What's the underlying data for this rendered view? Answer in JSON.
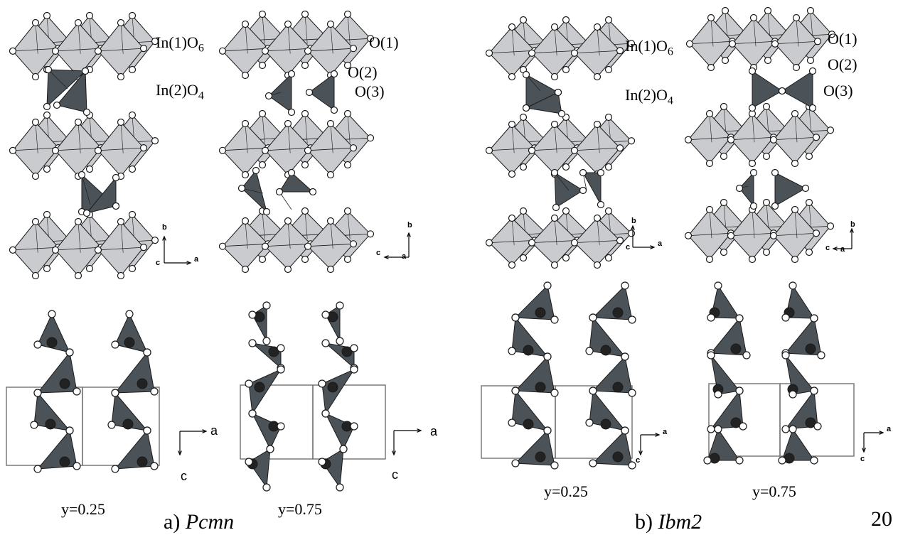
{
  "colors": {
    "octahedron_fill": "#c9cbce",
    "tetrahedron_fill": "#4b5359",
    "edge": "#1a1a1a",
    "oxygen_fill": "#ffffff",
    "indium_fill": "#222222",
    "cell_line": "#7a7a7a"
  },
  "panel_a": {
    "caption_prefix": "a) ",
    "caption_space_group": "Pcmn",
    "polyhedra_labels": [
      "In(1)O",
      "6",
      "In(2)O",
      "4"
    ],
    "oxygen_labels": [
      "O(1)",
      "O(2)",
      "O(3)"
    ],
    "axes_view1": {
      "up": "b",
      "right": "a",
      "origin": "c"
    },
    "axes_view2": {
      "up": "b",
      "left": "c",
      "origin": "a"
    },
    "layers": [
      {
        "label": "y=0.25",
        "axes": {
          "right": "a",
          "down": "c"
        }
      },
      {
        "label": "y=0.75",
        "axes": {
          "right": "a",
          "down": "c"
        }
      }
    ]
  },
  "panel_b": {
    "caption_prefix": "b) ",
    "caption_space_group": "Ibm2",
    "polyhedra_labels": [
      "In(1)O",
      "6",
      "In(2)O",
      "4"
    ],
    "oxygen_labels": [
      "O(1)",
      "O(2)",
      "O(3)"
    ],
    "axes_view1": {
      "up": "b",
      "right": "a",
      "origin": "c"
    },
    "axes_view2": {
      "up": "b",
      "left": "c",
      "origin": "a"
    },
    "layers": [
      {
        "label": "y=0.25",
        "axes": {
          "right": "a",
          "down": "c"
        }
      },
      {
        "label": "y=0.75",
        "axes": {
          "right": "a",
          "down": "c"
        }
      }
    ]
  },
  "page_number": "20"
}
